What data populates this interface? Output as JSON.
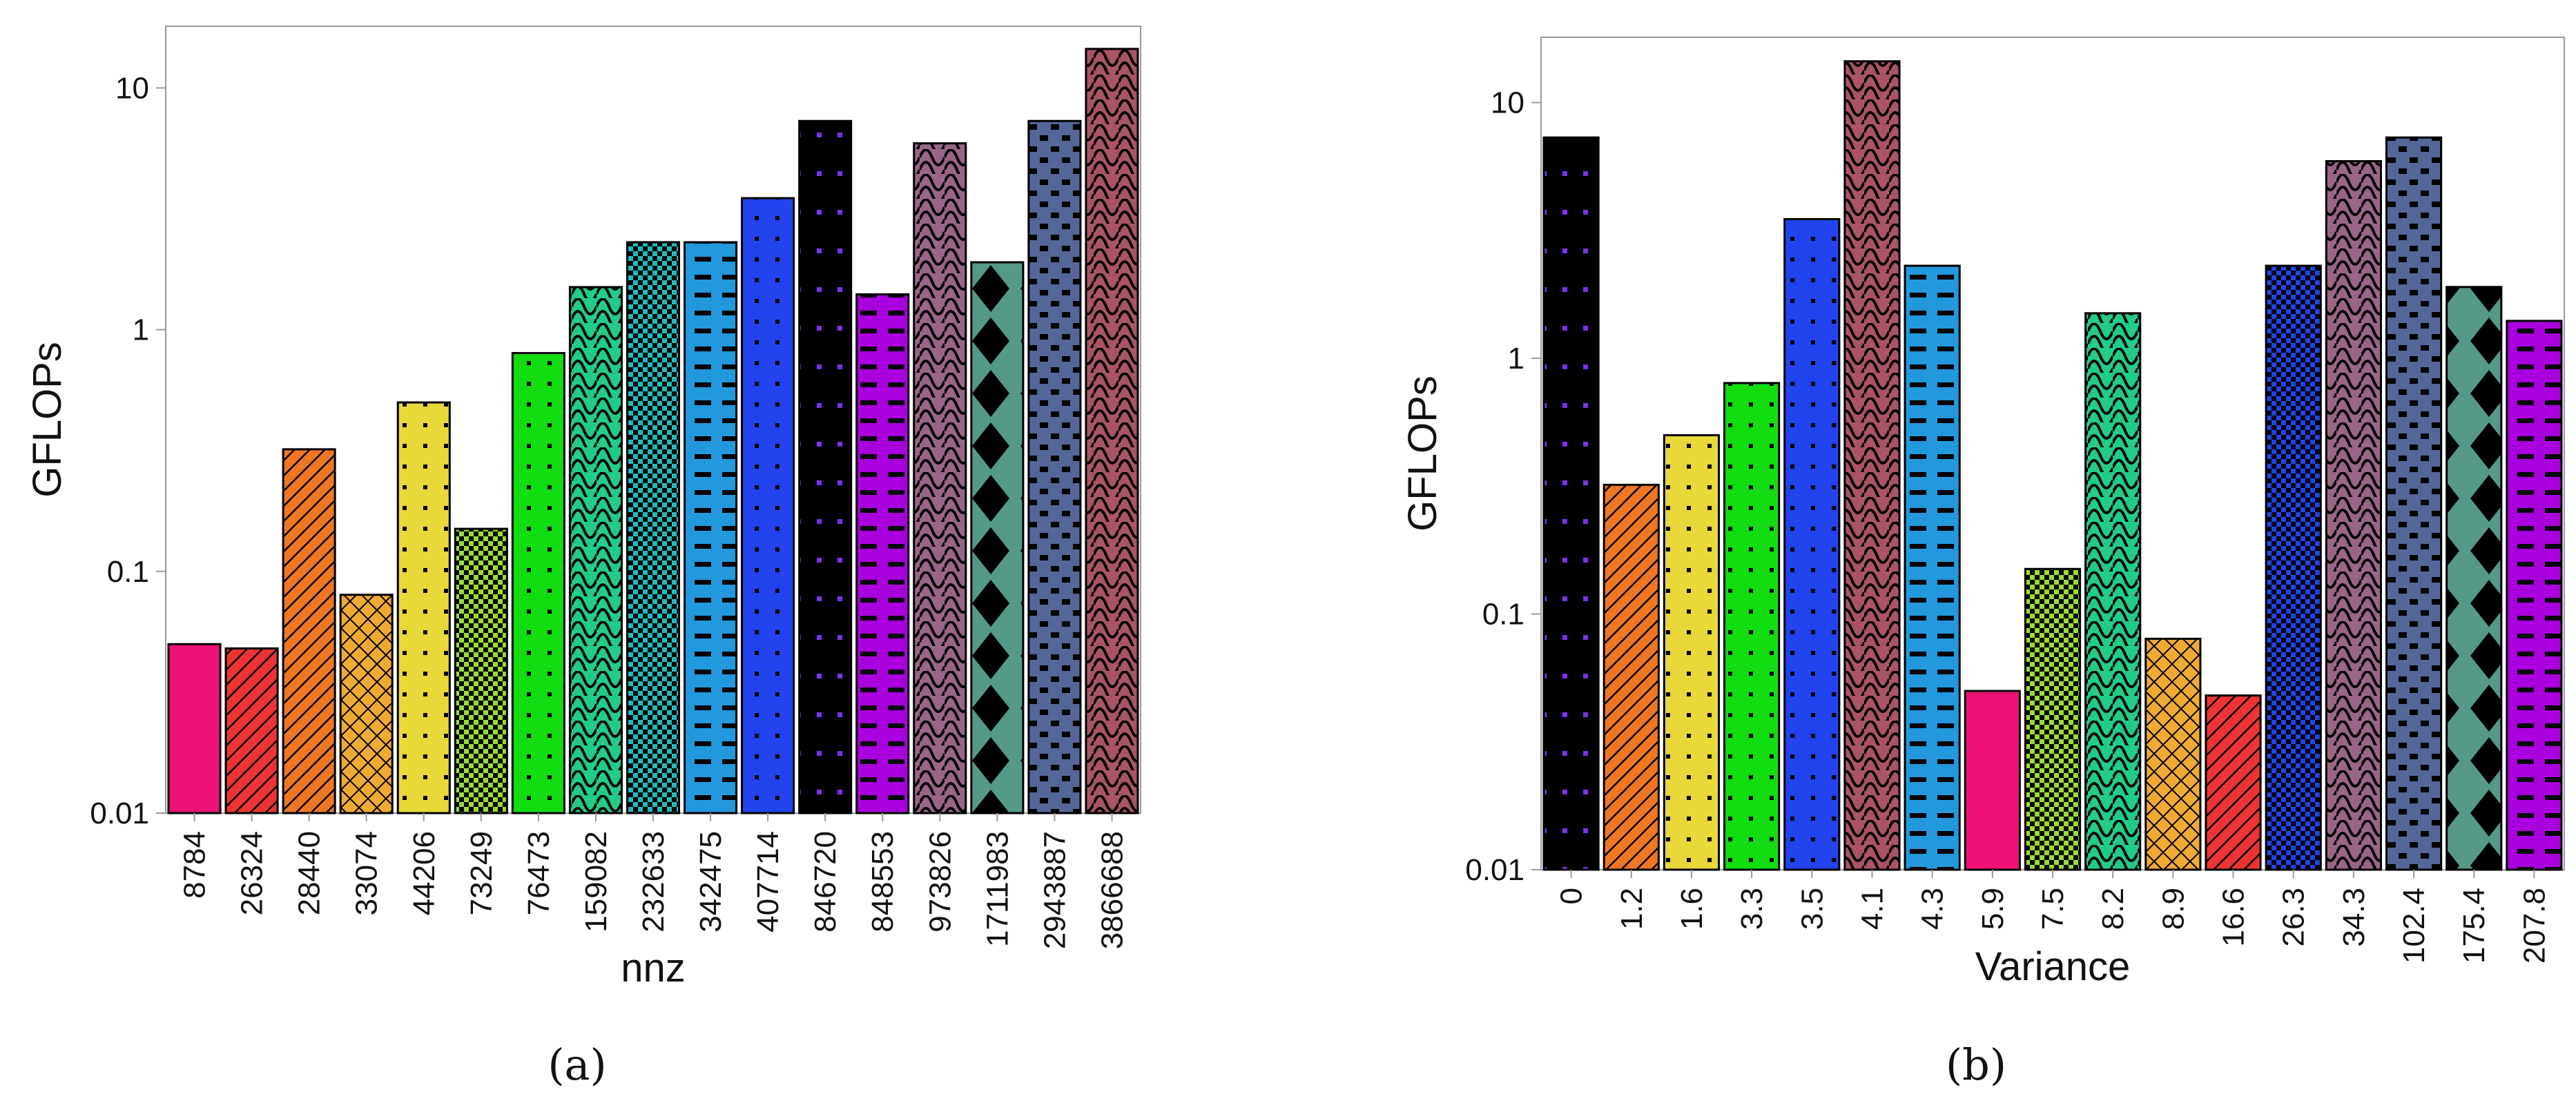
{
  "chart_data": [
    {
      "type": "bar",
      "panel": "(a)",
      "panel_name": "a",
      "xlabel": "nnz",
      "ylabel": "GFLOPs",
      "yscale": "log",
      "ylim": [
        0.01,
        18
      ],
      "yticks": [
        "0.01",
        "0.1",
        "1",
        "10"
      ],
      "categories": [
        "8784",
        "26324",
        "28440",
        "33074",
        "44206",
        "73249",
        "76473",
        "159082",
        "232633",
        "342475",
        "407714",
        "846720",
        "848553",
        "973826",
        "1711983",
        "2943887",
        "3866688"
      ],
      "values": [
        0.05,
        0.048,
        0.32,
        0.08,
        0.5,
        0.15,
        0.8,
        1.5,
        2.3,
        2.3,
        3.5,
        7.3,
        1.4,
        5.9,
        1.9,
        7.3,
        14.5
      ],
      "colors": [
        "#ee1177",
        "#ee3333",
        "#ee7722",
        "#eeaa33",
        "#e8d83a",
        "#99dd33",
        "#11dd11",
        "#22cc88",
        "#22bbbb",
        "#2299dd",
        "#2244ee",
        "#000000",
        "#aa00dd",
        "#996688",
        "#559988",
        "#556699",
        "#aa5566"
      ],
      "patterns": [
        "none",
        "diag",
        "diag",
        "cross",
        "dots",
        "check",
        "dots",
        "waves",
        "check",
        "dashes",
        "dots",
        "dots",
        "dashes",
        "waves",
        "diamonds",
        "bricks",
        "waves"
      ]
    },
    {
      "type": "bar",
      "panel": "(b)",
      "panel_name": "b",
      "xlabel": "Variance",
      "ylabel": "GFLOPs",
      "yscale": "log",
      "ylim": [
        0.01,
        18
      ],
      "yticks": [
        "0.01",
        "0.1",
        "1",
        "10"
      ],
      "categories": [
        "0",
        "1.2",
        "1.6",
        "3.3",
        "3.5",
        "4.1",
        "4.3",
        "5.9",
        "7.5",
        "8.2",
        "8.9",
        "16.6",
        "26.3",
        "34.3",
        "102.4",
        "175.4",
        "207.8"
      ],
      "values": [
        7.3,
        0.32,
        0.5,
        0.8,
        3.5,
        14.5,
        2.3,
        0.05,
        0.15,
        1.5,
        0.08,
        0.048,
        2.3,
        5.9,
        7.3,
        1.9,
        1.4
      ],
      "colors": [
        "#000000",
        "#ee7722",
        "#e8d83a",
        "#11dd11",
        "#2244ee",
        "#aa5566",
        "#2299dd",
        "#ee1177",
        "#99dd33",
        "#22cc88",
        "#eeaa33",
        "#ee3333",
        "#2244ee",
        "#996688",
        "#556699",
        "#559988",
        "#aa00dd"
      ],
      "patterns": [
        "dots",
        "diag",
        "dots",
        "dots",
        "dots",
        "waves",
        "dashes",
        "none",
        "check",
        "waves",
        "cross",
        "diag",
        "check",
        "waves",
        "bricks",
        "diamonds",
        "dashes"
      ]
    }
  ]
}
